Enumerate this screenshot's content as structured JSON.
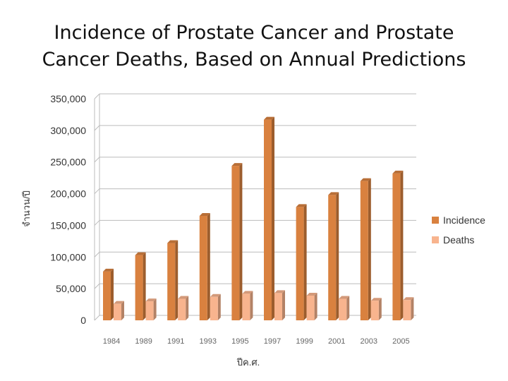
{
  "chart_data": {
    "type": "bar",
    "title": [
      "Incidence of Prostate Cancer and Prostate",
      "Cancer Deaths, Based on Annual Predictions"
    ],
    "xlabel": "ปีค.ศ.",
    "ylabel": "จำนวน/ปี",
    "ylim": [
      0,
      350000
    ],
    "yticks": [
      {
        "value": 0,
        "label": "0"
      },
      {
        "value": 50000,
        "label": "50,000"
      },
      {
        "value": 100000,
        "label": "100,000"
      },
      {
        "value": 150000,
        "label": "150,000"
      },
      {
        "value": 200000,
        "label": "200,000"
      },
      {
        "value": 250000,
        "label": "250,000"
      },
      {
        "value": 300000,
        "label": "300,000"
      },
      {
        "value": 350000,
        "label": "350,000"
      }
    ],
    "categories": [
      "1984",
      "1989",
      "1991",
      "1993",
      "1995",
      "1997",
      "1999",
      "2001",
      "2003",
      "2005"
    ],
    "series": [
      {
        "name": "Incidence",
        "color": "#D9813F",
        "values": [
          77000,
          103000,
          122000,
          165000,
          244000,
          317000,
          179000,
          198000,
          220000,
          232000
        ]
      },
      {
        "name": "Deaths",
        "color": "#F8B48E",
        "values": [
          26000,
          30000,
          34000,
          37000,
          42000,
          43000,
          39000,
          34000,
          31000,
          32000
        ]
      }
    ],
    "legend": "right",
    "grid": true
  }
}
